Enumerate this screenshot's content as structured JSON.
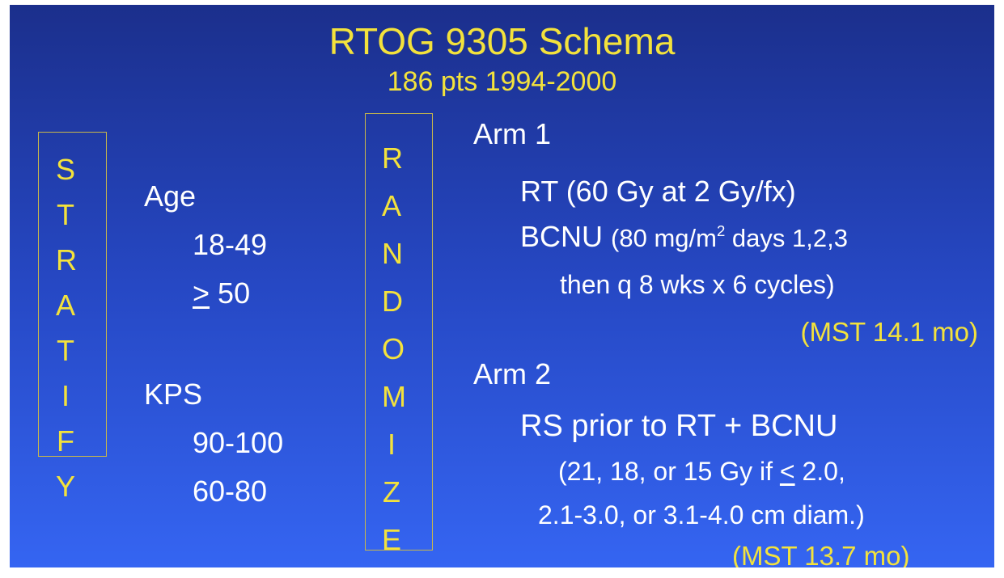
{
  "title": "RTOG 9305 Schema",
  "subtitle": "186 pts 1994-2000",
  "stratify": {
    "label": "STRATIFY",
    "age": {
      "heading": "Age",
      "groups": [
        "18-49",
        {
          "symbol": ">",
          "value": "50"
        }
      ]
    },
    "kps": {
      "heading": "KPS",
      "groups": [
        "90-100",
        "60-80"
      ]
    }
  },
  "randomize": "RANDOMIZE",
  "arms": [
    {
      "name": "Arm 1",
      "lines": [
        "RT (60 Gy at 2 Gy/fx)"
      ],
      "drug": {
        "name": "BCNU",
        "dose": "(80 mg/m",
        "sup": "2",
        "days": " days 1,2,3",
        "schedule": "then q 8 wks x 6 cycles)"
      },
      "result": "(MST 14.1 mo)"
    },
    {
      "name": "Arm 2",
      "lines": [
        "RS prior to RT + BCNU"
      ],
      "dose": {
        "before": "(21, 18, or 15 Gy if ",
        "symbol": "<",
        "after": " 2.0,",
        "second": "2.1-3.0, or 3.1-4.0 cm diam.)"
      },
      "result": "(MST 13.7 mo)"
    }
  ]
}
